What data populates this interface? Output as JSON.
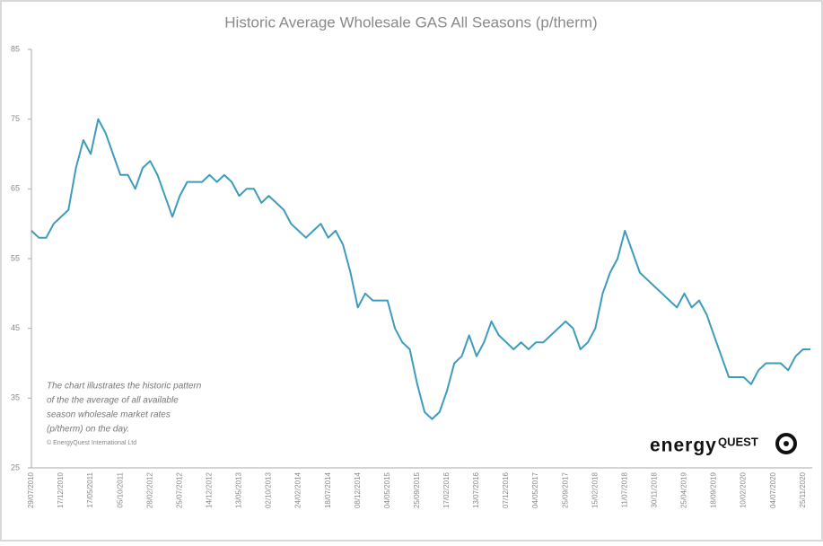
{
  "chart_data": {
    "type": "line",
    "title": "Historic Average Wholesale GAS All Seasons (p/therm)",
    "color": "#3d9cbc",
    "grid": false,
    "categories": [
      "29/07/2010",
      null,
      null,
      null,
      "17/12/2010",
      null,
      null,
      null,
      "17/05/2011",
      null,
      null,
      null,
      "05/10/2011",
      null,
      null,
      null,
      "28/02/2012",
      null,
      null,
      null,
      "25/07/2012",
      null,
      null,
      null,
      "14/12/2012",
      null,
      null,
      null,
      "13/05/2013",
      null,
      null,
      null,
      "02/10/2013",
      null,
      null,
      null,
      "24/02/2014",
      null,
      null,
      null,
      "18/07/2014",
      null,
      null,
      null,
      "08/12/2014",
      null,
      null,
      null,
      "04/05/2015",
      null,
      null,
      null,
      "25/09/2015",
      null,
      null,
      null,
      "17/02/2016",
      null,
      null,
      null,
      "13/07/2016",
      null,
      null,
      null,
      "07/12/2016",
      null,
      null,
      null,
      "04/05/2017",
      null,
      null,
      null,
      "25/09/2017",
      null,
      null,
      null,
      "15/02/2018",
      null,
      null,
      null,
      "11/07/2018",
      null,
      null,
      null,
      "30/11/2018",
      null,
      null,
      null,
      "25/04/2019",
      null,
      null,
      null,
      "18/09/2019",
      null,
      null,
      null,
      "10/02/2020",
      null,
      null,
      null,
      "04/07/2020",
      null,
      null,
      null,
      "25/11/2020",
      null
    ],
    "values": [
      59,
      58,
      58,
      60,
      61,
      62,
      68,
      72,
      70,
      75,
      73,
      70,
      67,
      67,
      65,
      68,
      69,
      67,
      64,
      61,
      64,
      66,
      66,
      66,
      67,
      66,
      67,
      66,
      64,
      65,
      65,
      63,
      64,
      63,
      62,
      60,
      59,
      58,
      59,
      60,
      58,
      59,
      57,
      53,
      48,
      50,
      49,
      49,
      49,
      45,
      43,
      42,
      37,
      33,
      32,
      33,
      36,
      40,
      41,
      44,
      41,
      43,
      46,
      44,
      43,
      42,
      43,
      42,
      43,
      43,
      44,
      45,
      46,
      45,
      42,
      43,
      45,
      50,
      53,
      55,
      59,
      56,
      53,
      52,
      51,
      50,
      49,
      48,
      50,
      48,
      49,
      47,
      44,
      41,
      38,
      38,
      38,
      37,
      39,
      40,
      40,
      40,
      39,
      41,
      42,
      42
    ],
    "ylim": [
      25,
      85
    ],
    "yticks": [
      25,
      35,
      45,
      55,
      65,
      75,
      85
    ],
    "annotation": [
      "The chart illustrates the historic pattern",
      "of the the average of all available",
      "season wholesale market rates",
      "(p/therm) on the day."
    ],
    "copyright": "© EnergyQuest International Ltd",
    "logo": {
      "part1": "energy",
      "part2": "QUEST"
    }
  }
}
